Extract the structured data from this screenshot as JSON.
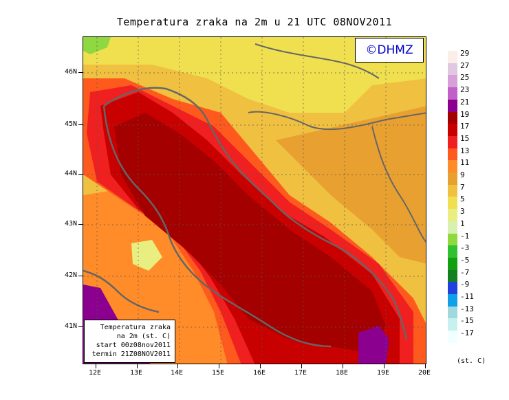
{
  "title": "Temperatura zraka na 2m u 21 UTC 08NOV2011",
  "copyright": "©DHMZ",
  "info_box": {
    "line1": "Temperatura zraka",
    "line2": "na 2m (st. C)",
    "line3": "start 00z08nov2011",
    "line4": "termin 21Z08NOV2011"
  },
  "axes": {
    "lat_labels": [
      "46N",
      "45N",
      "44N",
      "43N",
      "42N",
      "41N"
    ],
    "lon_labels": [
      "12E",
      "13E",
      "14E",
      "15E",
      "16E",
      "17E",
      "18E",
      "19E",
      "20E"
    ]
  },
  "legend": {
    "labels": [
      "29",
      "27",
      "25",
      "23",
      "21",
      "19",
      "17",
      "15",
      "13",
      "11",
      "9",
      "7",
      "5",
      "3",
      "1",
      "-1",
      "-3",
      "-5",
      "-7",
      "-9",
      "-11",
      "-13",
      "-15",
      "-17"
    ],
    "colors": [
      "#fbeee6",
      "#e0c8e0",
      "#d8a0d8",
      "#c060c8",
      "#8c0090",
      "#a40000",
      "#c80000",
      "#f02020",
      "#ff5a1e",
      "#ff8c28",
      "#e8a030",
      "#f0c040",
      "#f0e050",
      "#e8ee80",
      "#d8f0b0",
      "#90d840",
      "#30c030",
      "#10a010",
      "#108020",
      "#2040e0",
      "#10a0e8",
      "#a0d8e0",
      "#c8f0f0",
      "#f0ffff"
    ],
    "unit": "(st. C)"
  }
}
